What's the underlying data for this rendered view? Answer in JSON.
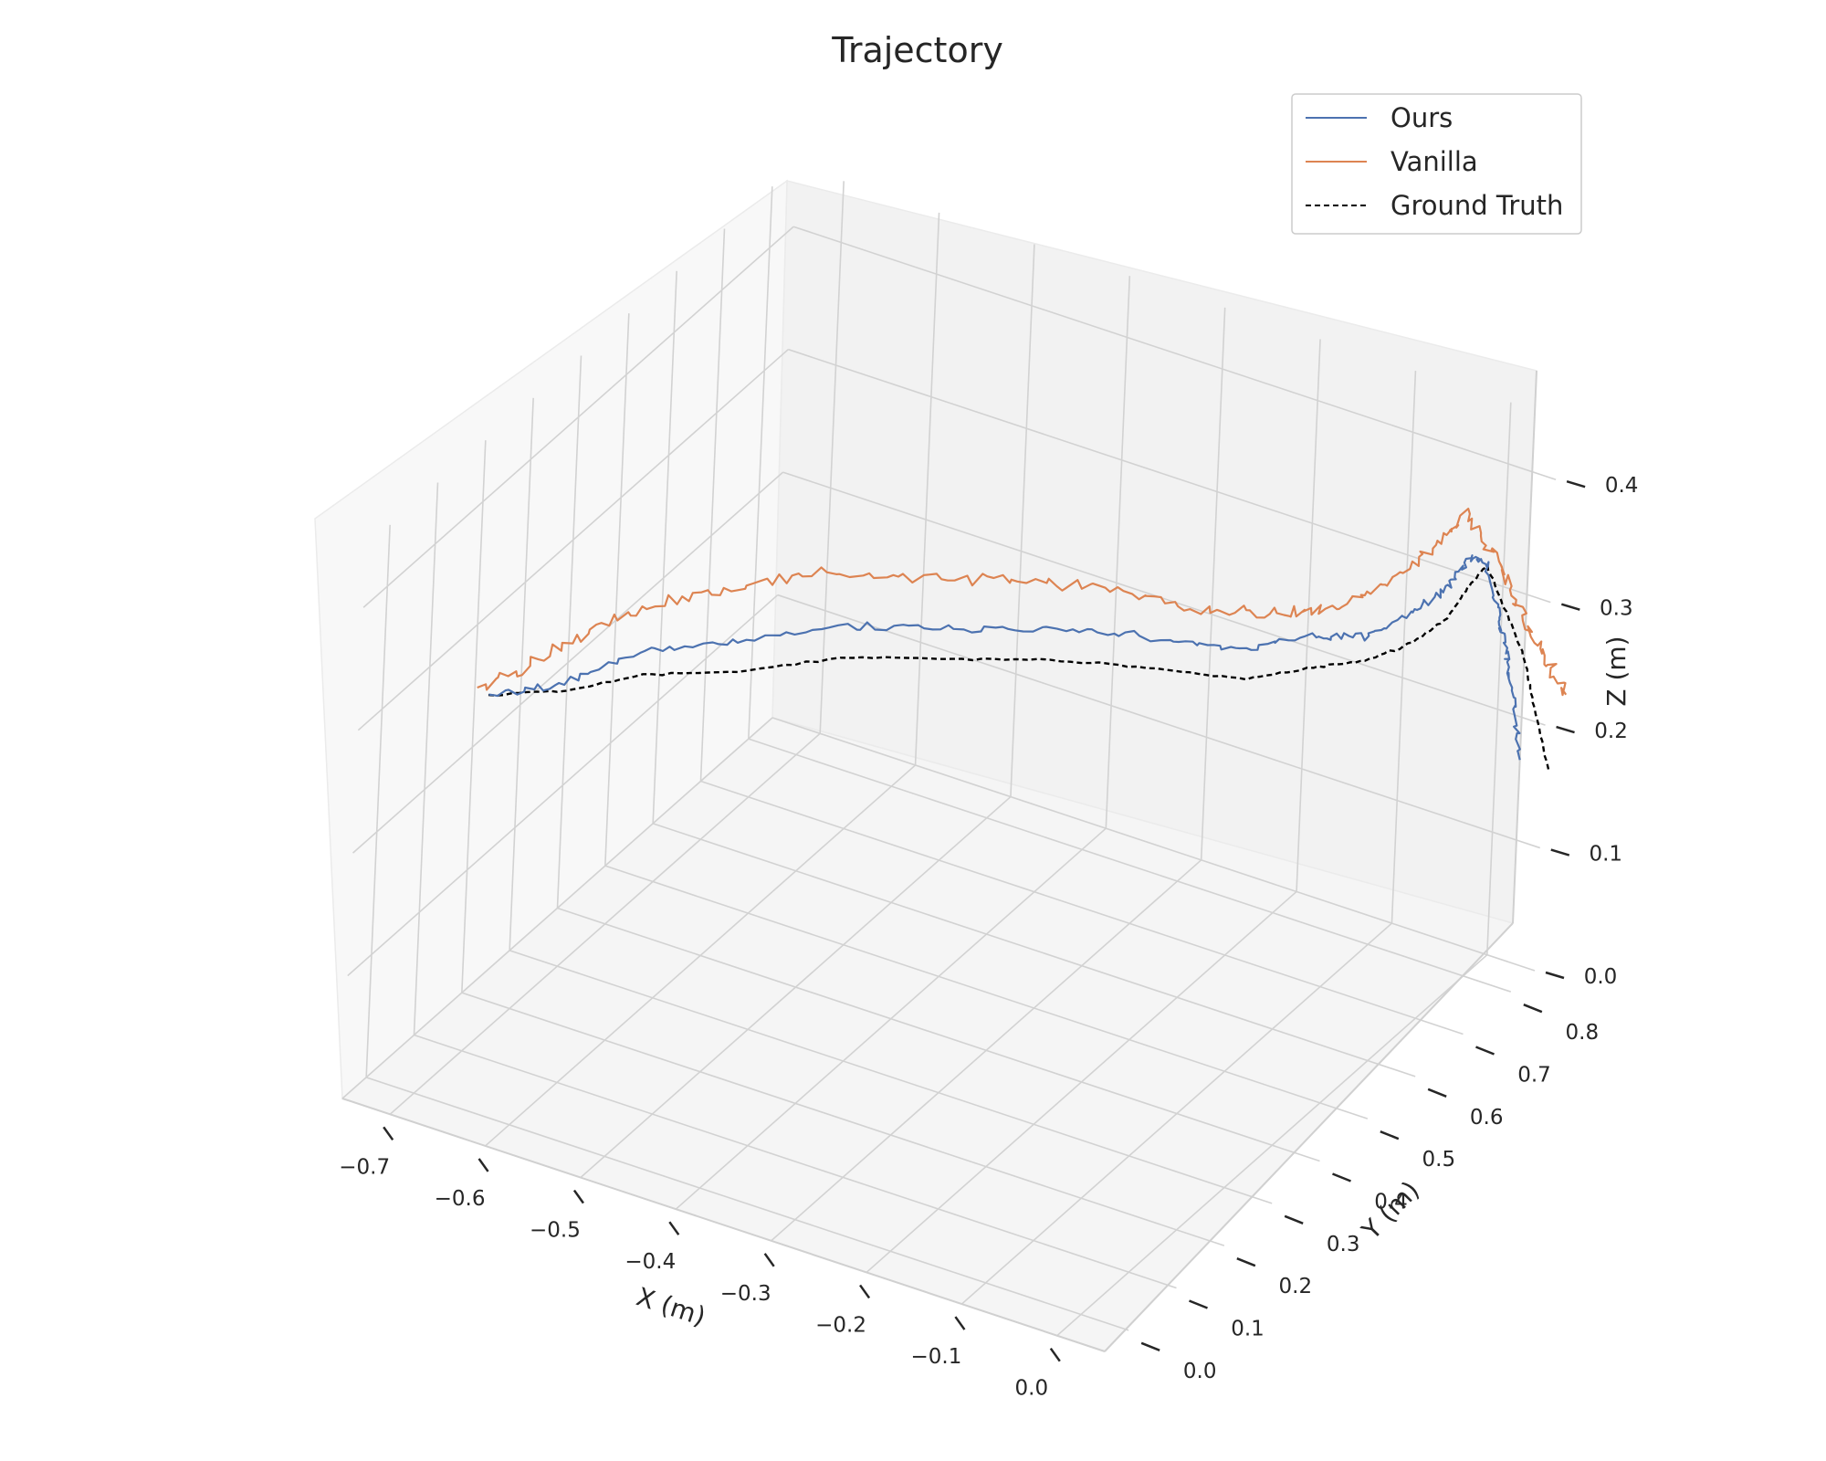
{
  "chart_data": {
    "type": "line",
    "projection": "3d",
    "title": "Trajectory",
    "xlabel": "X (m)",
    "ylabel": "Y (m)",
    "zlabel": "Z (m)",
    "xlim": [
      -0.75,
      0.05
    ],
    "ylim": [
      -0.05,
      0.85
    ],
    "zlim": [
      0.0,
      0.45
    ],
    "x_ticks": [
      "−0.7",
      "−0.6",
      "−0.5",
      "−0.4",
      "−0.3",
      "−0.2",
      "−0.1",
      "0.0"
    ],
    "x_tick_values": [
      -0.7,
      -0.6,
      -0.5,
      -0.4,
      -0.3,
      -0.2,
      -0.1,
      0.0
    ],
    "y_ticks": [
      "0.0",
      "0.1",
      "0.2",
      "0.3",
      "0.4",
      "0.5",
      "0.6",
      "0.7",
      "0.8"
    ],
    "y_tick_values": [
      0.0,
      0.1,
      0.2,
      0.3,
      0.4,
      0.5,
      0.6,
      0.7,
      0.8
    ],
    "z_ticks": [
      "0.0",
      "0.1",
      "0.2",
      "0.3",
      "0.4"
    ],
    "z_tick_values": [
      0.0,
      0.1,
      0.2,
      0.3,
      0.4
    ],
    "grid": true,
    "legend_position": "top-right",
    "series": [
      {
        "name": "Ours",
        "color": "#4c72b0",
        "style": "solid",
        "points": [
          [
            -0.65,
            0.02,
            0.33
          ],
          [
            -0.58,
            0.04,
            0.35
          ],
          [
            -0.53,
            0.1,
            0.37
          ],
          [
            -0.46,
            0.16,
            0.375
          ],
          [
            -0.38,
            0.24,
            0.38
          ],
          [
            -0.3,
            0.31,
            0.375
          ],
          [
            -0.22,
            0.38,
            0.37
          ],
          [
            -0.15,
            0.44,
            0.36
          ],
          [
            -0.09,
            0.49,
            0.35
          ],
          [
            -0.05,
            0.55,
            0.35
          ],
          [
            -0.02,
            0.6,
            0.34
          ],
          [
            0.0,
            0.66,
            0.345
          ],
          [
            0.01,
            0.71,
            0.35
          ],
          [
            0.02,
            0.73,
            0.37
          ],
          [
            0.03,
            0.75,
            0.36
          ],
          [
            0.03,
            0.78,
            0.31
          ],
          [
            0.03,
            0.8,
            0.27
          ],
          [
            0.03,
            0.82,
            0.23
          ],
          [
            0.03,
            0.84,
            0.17
          ]
        ]
      },
      {
        "name": "Vanilla",
        "color": "#dd8452",
        "style": "solid",
        "points": [
          [
            -0.66,
            0.02,
            0.33
          ],
          [
            -0.6,
            0.04,
            0.37
          ],
          [
            -0.55,
            0.1,
            0.395
          ],
          [
            -0.49,
            0.16,
            0.41
          ],
          [
            -0.42,
            0.23,
            0.415
          ],
          [
            -0.34,
            0.3,
            0.41
          ],
          [
            -0.27,
            0.37,
            0.4
          ],
          [
            -0.2,
            0.43,
            0.39
          ],
          [
            -0.13,
            0.48,
            0.375
          ],
          [
            -0.08,
            0.54,
            0.365
          ],
          [
            -0.05,
            0.6,
            0.355
          ],
          [
            -0.03,
            0.66,
            0.36
          ],
          [
            -0.01,
            0.71,
            0.375
          ],
          [
            0.01,
            0.74,
            0.4
          ],
          [
            0.03,
            0.77,
            0.36
          ],
          [
            0.04,
            0.8,
            0.31
          ],
          [
            0.06,
            0.82,
            0.27
          ],
          [
            0.07,
            0.85,
            0.23
          ]
        ]
      },
      {
        "name": "Ground Truth",
        "color": "#000000",
        "style": "dashed",
        "points": [
          [
            -0.65,
            0.02,
            0.33
          ],
          [
            -0.58,
            0.04,
            0.345
          ],
          [
            -0.53,
            0.1,
            0.35
          ],
          [
            -0.46,
            0.16,
            0.35
          ],
          [
            -0.38,
            0.24,
            0.355
          ],
          [
            -0.3,
            0.31,
            0.35
          ],
          [
            -0.22,
            0.38,
            0.345
          ],
          [
            -0.15,
            0.44,
            0.335
          ],
          [
            -0.09,
            0.49,
            0.325
          ],
          [
            -0.05,
            0.55,
            0.325
          ],
          [
            -0.02,
            0.6,
            0.32
          ],
          [
            0.0,
            0.66,
            0.32
          ],
          [
            0.01,
            0.71,
            0.325
          ],
          [
            0.02,
            0.73,
            0.345
          ],
          [
            0.03,
            0.75,
            0.36
          ],
          [
            0.04,
            0.78,
            0.31
          ],
          [
            0.05,
            0.8,
            0.27
          ],
          [
            0.05,
            0.82,
            0.23
          ],
          [
            0.06,
            0.84,
            0.17
          ]
        ]
      }
    ]
  }
}
